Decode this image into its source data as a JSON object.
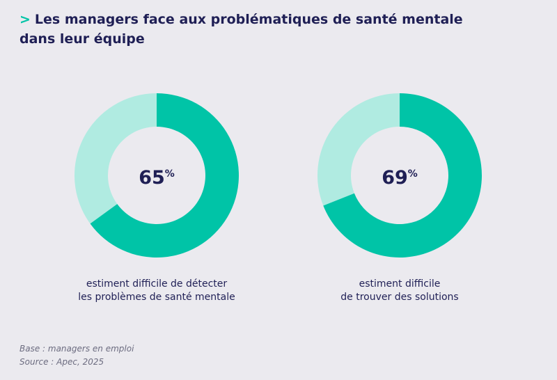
{
  "header": {
    "marker": ">",
    "title": "Les managers face aux problématiques de santé mentale dans leur équipe"
  },
  "chart_data": [
    {
      "type": "donut",
      "values": [
        65
      ],
      "value_labels": [
        "65%"
      ],
      "color": "#00c4a7",
      "track_color": "#b0ebe1",
      "caption": [
        "estiment difficile de détecter",
        "les problèmes de santé mentale"
      ]
    },
    {
      "type": "donut",
      "values": [
        69
      ],
      "value_labels": [
        "69%"
      ],
      "color": "#00c4a7",
      "track_color": "#b0ebe1",
      "caption": [
        "estiment difficile",
        "de trouver des solutions"
      ]
    }
  ],
  "footer": {
    "base": "Base : managers en emploi",
    "source": "Source : Apec, 2025"
  }
}
